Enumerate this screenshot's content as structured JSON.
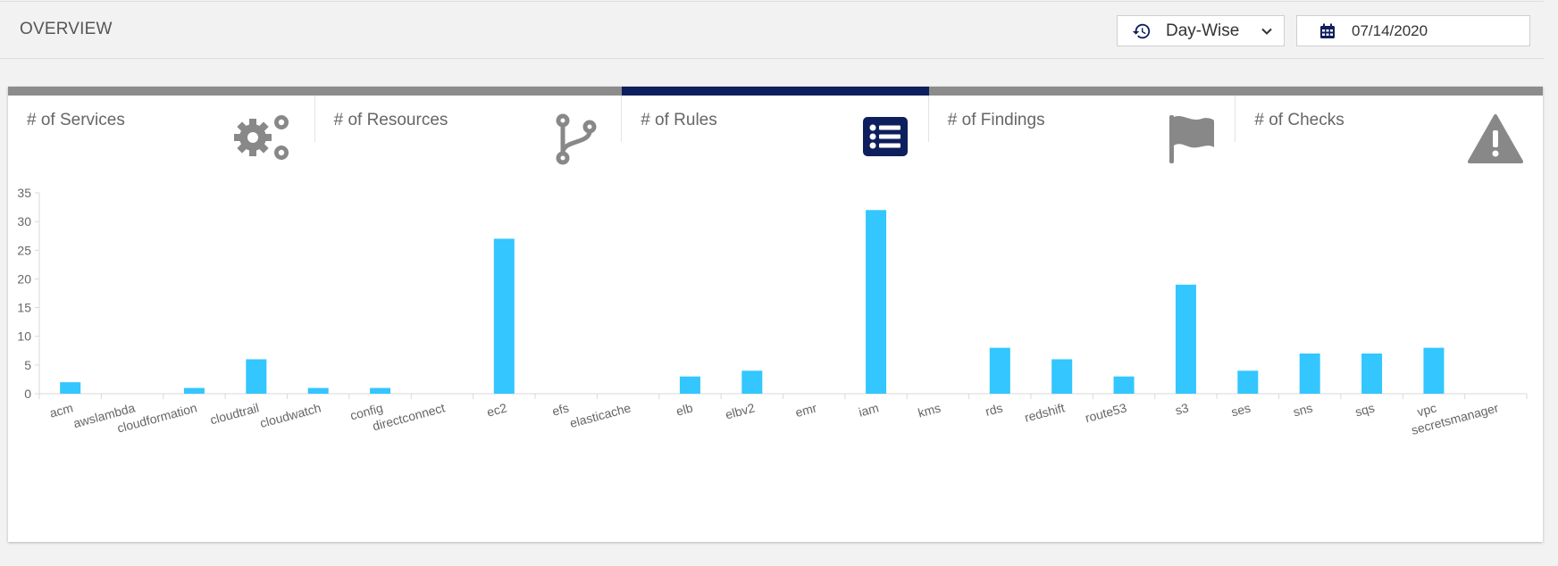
{
  "header": {
    "title": "OVERVIEW"
  },
  "controls": {
    "period_select": {
      "value": "Day-Wise",
      "icon": "history-icon"
    },
    "date_field": {
      "value": "07/14/2020",
      "icon": "calendar-icon"
    }
  },
  "tabs": [
    {
      "label": "# of Services",
      "icon": "gears-icon",
      "active": false
    },
    {
      "label": "# of Resources",
      "icon": "code-branch-icon",
      "active": false
    },
    {
      "label": "# of Rules",
      "icon": "list-icon",
      "active": true
    },
    {
      "label": "# of Findings",
      "icon": "flag-icon",
      "active": false
    },
    {
      "label": "# of Checks",
      "icon": "warning-icon",
      "active": false
    }
  ],
  "colors": {
    "bar": "#33c6ff",
    "active_tab": "#0d1f5c",
    "inactive_tab": "#8c8c8c",
    "icon_gray": "#888888"
  },
  "chart_data": {
    "type": "bar",
    "categories": [
      "acm",
      "awslambda",
      "cloudformation",
      "cloudtrail",
      "cloudwatch",
      "config",
      "directconnect",
      "ec2",
      "efs",
      "elasticache",
      "elb",
      "elbv2",
      "emr",
      "iam",
      "kms",
      "rds",
      "redshift",
      "route53",
      "s3",
      "ses",
      "sns",
      "sqs",
      "vpc",
      "secretsmanager"
    ],
    "values": [
      2,
      0,
      1,
      6,
      1,
      1,
      0,
      27,
      0,
      0,
      3,
      4,
      0,
      32,
      0,
      8,
      6,
      3,
      19,
      4,
      7,
      7,
      8,
      0
    ],
    "ylim": [
      0,
      35
    ],
    "yticks": [
      "0",
      "5",
      "10",
      "15",
      "20",
      "25",
      "30",
      "35"
    ],
    "grid": false
  }
}
